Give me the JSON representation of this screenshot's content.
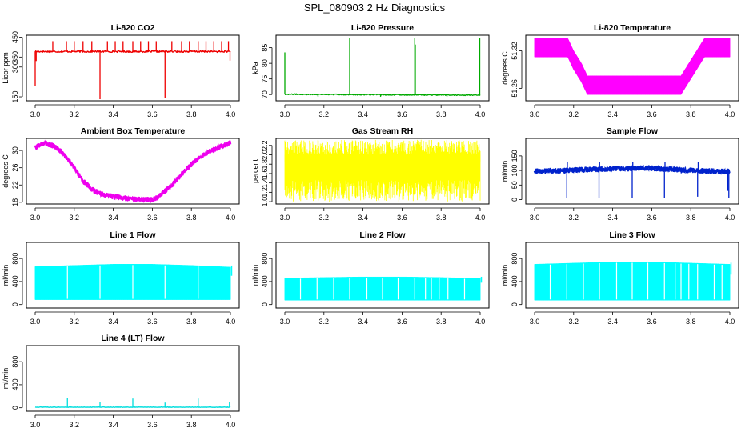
{
  "figure_title": "SPL_080903  2 Hz Diagnostics",
  "chart_data": [
    {
      "id": "co2",
      "type": "line",
      "title": "Li-820 CO2",
      "ylabel": "Licor ppm",
      "color": "#ee0000",
      "xlim": [
        3.0,
        4.0
      ],
      "ylim": [
        130,
        460
      ],
      "xticks": [
        3.0,
        3.2,
        3.4,
        3.6,
        3.8,
        4.0
      ],
      "xtick_labels": [
        "3.0",
        "3.2",
        "3.4",
        "3.6",
        "3.8",
        "4.0"
      ],
      "yticks": [
        150,
        300,
        350,
        450
      ],
      "ytick_labels": [
        "150",
        "300",
        "350",
        "450"
      ],
      "style": "noisy",
      "noise": 4,
      "series": [
        {
          "name": "Li-820 CO2",
          "x": [
            3.0,
            4.0
          ],
          "y": [
            378,
            378
          ]
        }
      ],
      "spikes": [
        {
          "x": 3.0,
          "y": 205
        },
        {
          "x": 3.005,
          "y": 330
        },
        {
          "x": 3.09,
          "y": 430
        },
        {
          "x": 3.16,
          "y": 430
        },
        {
          "x": 3.2,
          "y": 430
        },
        {
          "x": 3.245,
          "y": 430
        },
        {
          "x": 3.29,
          "y": 430
        },
        {
          "x": 3.332,
          "y": 138
        },
        {
          "x": 3.37,
          "y": 430
        },
        {
          "x": 3.41,
          "y": 430
        },
        {
          "x": 3.45,
          "y": 430
        },
        {
          "x": 3.5,
          "y": 430
        },
        {
          "x": 3.54,
          "y": 430
        },
        {
          "x": 3.58,
          "y": 430
        },
        {
          "x": 3.62,
          "y": 430
        },
        {
          "x": 3.665,
          "y": 145
        },
        {
          "x": 3.7,
          "y": 430
        },
        {
          "x": 3.75,
          "y": 430
        },
        {
          "x": 3.79,
          "y": 430
        },
        {
          "x": 3.835,
          "y": 430
        },
        {
          "x": 3.875,
          "y": 430
        },
        {
          "x": 3.915,
          "y": 430
        },
        {
          "x": 3.955,
          "y": 430
        },
        {
          "x": 3.99,
          "y": 430
        },
        {
          "x": 3.998,
          "y": 332
        }
      ]
    },
    {
      "id": "pressure",
      "type": "line",
      "title": "Li-820 Pressure",
      "ylabel": "kPa",
      "color": "#00aa00",
      "xlim": [
        3.0,
        4.0
      ],
      "ylim": [
        68,
        89
      ],
      "xticks": [
        3.0,
        3.2,
        3.4,
        3.6,
        3.8,
        4.0
      ],
      "xtick_labels": [
        "3.0",
        "3.2",
        "3.4",
        "3.6",
        "3.8",
        "4.0"
      ],
      "yticks": [
        70,
        75,
        80,
        85
      ],
      "ytick_labels": [
        "70",
        "75",
        "80",
        "85"
      ],
      "style": "noisy",
      "noise": 0.15,
      "series": [
        {
          "name": "Li-820 Pressure",
          "x": [
            3.0,
            4.0
          ],
          "y": [
            70.1,
            69.8
          ]
        }
      ],
      "spikes": [
        {
          "x": 3.0,
          "y": 83.5
        },
        {
          "x": 3.332,
          "y": 88
        },
        {
          "x": 3.665,
          "y": 88
        },
        {
          "x": 3.668,
          "y": 86
        },
        {
          "x": 3.998,
          "y": 88
        },
        {
          "x": 3.17,
          "y": 69.3
        },
        {
          "x": 3.49,
          "y": 69.3
        },
        {
          "x": 3.83,
          "y": 69.3
        }
      ]
    },
    {
      "id": "li820temp",
      "type": "area",
      "title": "Li-820 Temperature",
      "ylabel": "degrees C",
      "color": "#ff00ff",
      "xlim": [
        3.0,
        4.0
      ],
      "ylim": [
        51.24,
        51.345
      ],
      "xticks": [
        3.0,
        3.2,
        3.4,
        3.6,
        3.8,
        4.0
      ],
      "xtick_labels": [
        "3.0",
        "3.2",
        "3.4",
        "3.6",
        "3.8",
        "4.0"
      ],
      "yticks": [
        51.26,
        51.32
      ],
      "ytick_labels": [
        "51.26",
        "51.32"
      ],
      "style": "band",
      "band": {
        "x": [
          3.0,
          3.17,
          3.2,
          3.24,
          3.27,
          3.3,
          3.48,
          3.52,
          3.68,
          3.72,
          3.75,
          3.79,
          3.83,
          3.87,
          4.0
        ],
        "low": [
          51.31,
          51.31,
          51.29,
          51.27,
          51.25,
          51.25,
          51.25,
          51.25,
          51.25,
          51.25,
          51.25,
          51.27,
          51.29,
          51.31,
          51.31
        ],
        "high": [
          51.34,
          51.34,
          51.32,
          51.3,
          51.28,
          51.28,
          51.28,
          51.28,
          51.28,
          51.28,
          51.28,
          51.3,
          51.32,
          51.34,
          51.34
        ]
      }
    },
    {
      "id": "ambient",
      "type": "line",
      "title": "Ambient Box Temperature",
      "ylabel": "degrees C",
      "color": "#ee00ee",
      "xlim": [
        3.0,
        4.0
      ],
      "ylim": [
        17.6,
        32.8
      ],
      "xticks": [
        3.0,
        3.2,
        3.4,
        3.6,
        3.8,
        4.0
      ],
      "xtick_labels": [
        "3.0",
        "3.2",
        "3.4",
        "3.6",
        "3.8",
        "4.0"
      ],
      "yticks": [
        18,
        22,
        26,
        30
      ],
      "ytick_labels": [
        "18",
        "22",
        "26",
        "30"
      ],
      "style": "thick",
      "noise": 0.45,
      "series": [
        {
          "name": "Ambient Box Temperature",
          "x": [
            3.0,
            3.05,
            3.1,
            3.15,
            3.2,
            3.25,
            3.3,
            3.35,
            3.4,
            3.45,
            3.5,
            3.55,
            3.6,
            3.62,
            3.65,
            3.7,
            3.75,
            3.8,
            3.85,
            3.9,
            3.95,
            4.0
          ],
          "y": [
            30.7,
            31.7,
            31.0,
            29.0,
            26.0,
            22.7,
            20.7,
            19.7,
            19.3,
            19.0,
            18.8,
            18.6,
            18.6,
            19.0,
            20.0,
            22.0,
            24.5,
            26.8,
            28.7,
            30.0,
            30.9,
            31.8
          ]
        }
      ]
    },
    {
      "id": "rh",
      "type": "area",
      "title": "Gas Stream RH",
      "ylabel": "percent",
      "color": "#ffff00",
      "xlim": [
        3.0,
        4.0
      ],
      "ylim": [
        0.95,
        2.35
      ],
      "xticks": [
        3.0,
        3.2,
        3.4,
        3.6,
        3.8,
        4.0
      ],
      "xtick_labels": [
        "3.0",
        "3.2",
        "3.4",
        "3.6",
        "3.8",
        "4.0"
      ],
      "yticks": [
        1.0,
        1.2,
        1.4,
        1.6,
        1.8,
        2.0,
        2.2
      ],
      "ytick_labels": [
        "1.0",
        "1.2",
        "1.4",
        "1.6",
        "1.8",
        "2.0",
        "2.2"
      ],
      "style": "band",
      "band": {
        "x": [
          3.0,
          4.0
        ],
        "low": [
          1.85,
          1.85
        ],
        "high": [
          2.0,
          2.0
        ]
      },
      "fluct": {
        "lo": 1.0,
        "hi": 2.32
      }
    },
    {
      "id": "sample",
      "type": "line",
      "title": "Sample Flow",
      "ylabel": "ml/min",
      "color": "#0022cc",
      "xlim": [
        3.0,
        4.0
      ],
      "ylim": [
        -15,
        210
      ],
      "xticks": [
        3.0,
        3.2,
        3.4,
        3.6,
        3.8,
        4.0
      ],
      "xtick_labels": [
        "3.0",
        "3.2",
        "3.4",
        "3.6",
        "3.8",
        "4.0"
      ],
      "yticks": [
        0,
        50,
        100,
        150
      ],
      "ytick_labels": [
        "0",
        "50",
        "100",
        "150"
      ],
      "style": "thick",
      "noise": 7,
      "series": [
        {
          "name": "Sample Flow",
          "x": [
            3.0,
            3.2,
            3.4,
            3.6,
            3.8,
            4.0
          ],
          "y": [
            97,
            101,
            106,
            108,
            100,
            96
          ]
        }
      ],
      "spikes": [
        {
          "x": 3.165,
          "y": 5
        },
        {
          "x": 3.168,
          "y": 130
        },
        {
          "x": 3.33,
          "y": 5
        },
        {
          "x": 3.333,
          "y": 130
        },
        {
          "x": 3.5,
          "y": 5
        },
        {
          "x": 3.503,
          "y": 130
        },
        {
          "x": 3.665,
          "y": 5
        },
        {
          "x": 3.668,
          "y": 130
        },
        {
          "x": 3.835,
          "y": 10
        },
        {
          "x": 3.838,
          "y": 130
        },
        {
          "x": 3.995,
          "y": 5
        },
        {
          "x": 3.99,
          "y": 30
        }
      ]
    },
    {
      "id": "line1",
      "type": "area",
      "title": "Line 1 Flow",
      "ylabel": "ml/min",
      "color": "#00ffff",
      "xlim": [
        3.0,
        4.0
      ],
      "ylim": [
        -60,
        1080
      ],
      "xticks": [
        3.0,
        3.2,
        3.4,
        3.6,
        3.8,
        4.0
      ],
      "xtick_labels": [
        "3.0",
        "3.2",
        "3.4",
        "3.6",
        "3.8",
        "4.0"
      ],
      "yticks": [
        0,
        400,
        800
      ],
      "ytick_labels": [
        "0",
        "400",
        "800"
      ],
      "style": "band",
      "band": {
        "x": [
          3.0,
          3.2,
          3.4,
          3.6,
          3.8,
          4.0
        ],
        "low": [
          85,
          85,
          85,
          85,
          85,
          85
        ],
        "high": [
          660,
          680,
          700,
          700,
          680,
          650
        ]
      },
      "gaps": [
        3.165,
        3.332,
        3.5,
        3.665,
        3.835
      ],
      "tail": 500
    },
    {
      "id": "line2",
      "type": "area",
      "title": "Line 2 Flow",
      "ylabel": "ml/min",
      "color": "#00ffff",
      "xlim": [
        3.0,
        4.0
      ],
      "ylim": [
        -60,
        1080
      ],
      "xticks": [
        3.0,
        3.2,
        3.4,
        3.6,
        3.8,
        4.0
      ],
      "xtick_labels": [
        "3.0",
        "3.2",
        "3.4",
        "3.6",
        "3.8",
        "4.0"
      ],
      "yticks": [
        0,
        400,
        800
      ],
      "ytick_labels": [
        "0",
        "400",
        "800"
      ],
      "style": "band",
      "band": {
        "x": [
          3.0,
          3.2,
          3.4,
          3.6,
          3.8,
          4.0
        ],
        "low": [
          75,
          75,
          75,
          75,
          75,
          75
        ],
        "high": [
          460,
          470,
          480,
          480,
          470,
          455
        ]
      },
      "gaps": [
        3.08,
        3.165,
        3.25,
        3.332,
        3.42,
        3.5,
        3.58,
        3.665,
        3.72,
        3.75,
        3.79,
        3.835,
        3.92
      ],
      "tail": 380
    },
    {
      "id": "line3",
      "type": "area",
      "title": "Line 3 Flow",
      "ylabel": "ml/min",
      "color": "#00ffff",
      "xlim": [
        3.0,
        4.0
      ],
      "ylim": [
        -60,
        1080
      ],
      "xticks": [
        3.0,
        3.2,
        3.4,
        3.6,
        3.8,
        4.0
      ],
      "xtick_labels": [
        "3.0",
        "3.2",
        "3.4",
        "3.6",
        "3.8",
        "4.0"
      ],
      "yticks": [
        0,
        400,
        800
      ],
      "ytick_labels": [
        "0",
        "400",
        "800"
      ],
      "style": "band",
      "band": {
        "x": [
          3.0,
          3.2,
          3.4,
          3.6,
          3.8,
          4.0
        ],
        "low": [
          75,
          75,
          75,
          75,
          75,
          75
        ],
        "high": [
          700,
          720,
          740,
          740,
          720,
          700
        ]
      },
      "gaps": [
        3.08,
        3.165,
        3.25,
        3.332,
        3.42,
        3.5,
        3.58,
        3.665,
        3.72,
        3.75,
        3.79,
        3.835,
        3.92,
        3.96
      ],
      "tail": 520
    },
    {
      "id": "line4",
      "type": "line",
      "title": "Line 4 (LT) Flow",
      "ylabel": "ml/min",
      "color": "#00dddd",
      "xlim": [
        3.0,
        4.0
      ],
      "ylim": [
        -60,
        1080
      ],
      "xticks": [
        3.0,
        3.2,
        3.4,
        3.6,
        3.8,
        4.0
      ],
      "xtick_labels": [
        "3.0",
        "3.2",
        "3.4",
        "3.6",
        "3.8",
        "4.0"
      ],
      "yticks": [
        0,
        400,
        800
      ],
      "ytick_labels": [
        "0",
        "400",
        "800"
      ],
      "style": "noisy",
      "noise": 4,
      "series": [
        {
          "name": "Line 4 (LT) Flow",
          "x": [
            3.0,
            4.0
          ],
          "y": [
            10,
            10
          ]
        }
      ],
      "spikes": [
        {
          "x": 3.165,
          "y": 170
        },
        {
          "x": 3.332,
          "y": 100
        },
        {
          "x": 3.5,
          "y": 160
        },
        {
          "x": 3.665,
          "y": 90
        },
        {
          "x": 3.835,
          "y": 160
        },
        {
          "x": 3.995,
          "y": 100
        }
      ]
    }
  ]
}
